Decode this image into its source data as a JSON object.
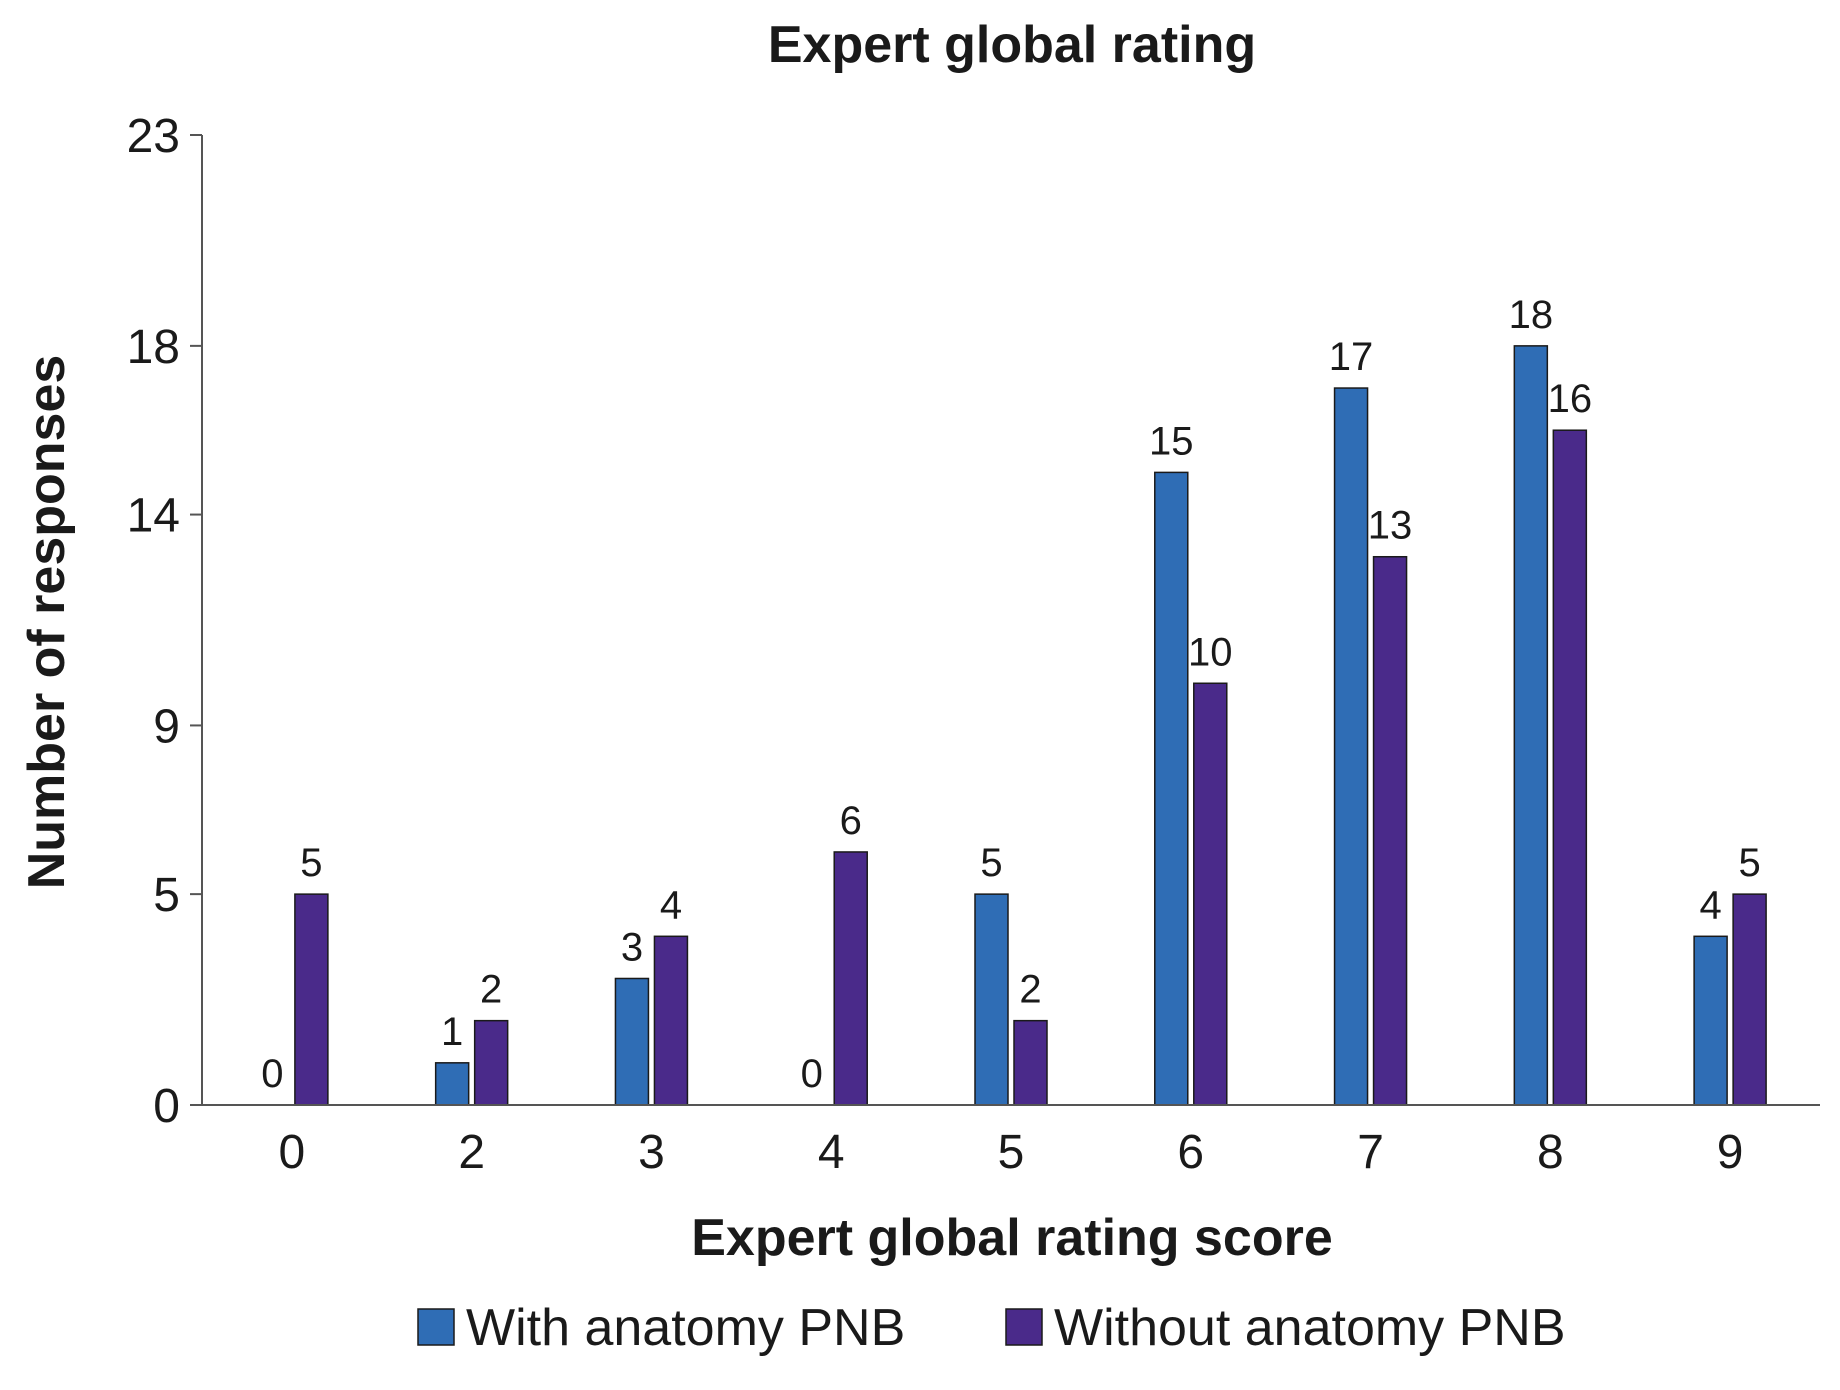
{
  "chart_data": {
    "type": "bar",
    "title": "Expert global rating",
    "xlabel": "Expert global rating score",
    "ylabel": "Number of responses",
    "categories": [
      "0",
      "2",
      "3",
      "4",
      "5",
      "6",
      "7",
      "8",
      "9"
    ],
    "series": [
      {
        "name": "With anatomy PNB",
        "values": [
          0,
          1,
          3,
          0,
          5,
          15,
          17,
          18,
          4
        ],
        "color": "#2F6DB5"
      },
      {
        "name": "Without anatomy PNB",
        "values": [
          5,
          2,
          4,
          6,
          2,
          10,
          13,
          16,
          5
        ],
        "color": "#4A2A8A"
      }
    ],
    "yticks": [
      0,
      5,
      9,
      14,
      18,
      23
    ],
    "ylim": [
      0,
      23
    ],
    "grid": false,
    "legend_position": "bottom"
  }
}
